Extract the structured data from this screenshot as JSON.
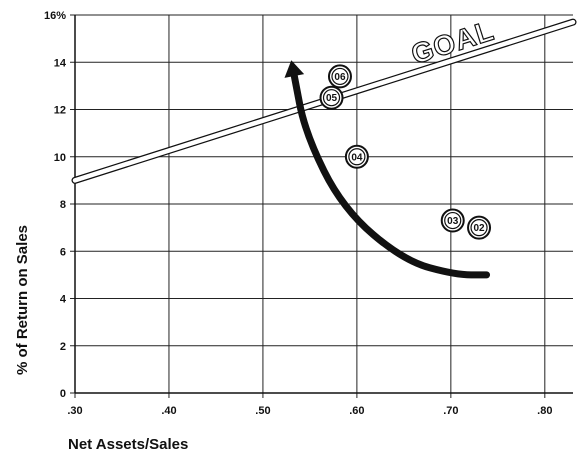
{
  "chart_data": {
    "type": "scatter",
    "xlabel": "Net Assets/Sales",
    "ylabel": "% of Return on Sales",
    "xlim": [
      0.3,
      0.83
    ],
    "ylim": [
      0,
      16
    ],
    "x_ticks": [
      0.3,
      0.4,
      0.5,
      0.6,
      0.7,
      0.8
    ],
    "x_tick_labels": [
      ".30",
      ".40",
      ".50",
      ".60",
      ".70",
      ".80"
    ],
    "y_ticks": [
      0,
      2,
      4,
      6,
      8,
      10,
      12,
      14,
      16
    ],
    "y_tick_labels": [
      "0",
      "2",
      "4",
      "6",
      "8",
      "10",
      "12",
      "14",
      "16%"
    ],
    "grid": true,
    "goal_line": {
      "label": "GOAL",
      "start": [
        0.3,
        9.0
      ],
      "end": [
        0.83,
        15.7
      ]
    },
    "points": [
      {
        "label": "02",
        "x": 0.73,
        "y": 7.0
      },
      {
        "label": "03",
        "x": 0.702,
        "y": 7.3
      },
      {
        "label": "04",
        "x": 0.6,
        "y": 10.0
      },
      {
        "label": "05",
        "x": 0.573,
        "y": 12.5
      },
      {
        "label": "06",
        "x": 0.582,
        "y": 13.4
      }
    ],
    "trend_arrow": {
      "path": [
        [
          0.738,
          5.0
        ],
        [
          0.705,
          5.0
        ],
        [
          0.65,
          5.6
        ],
        [
          0.585,
          7.8
        ],
        [
          0.545,
          11.0
        ],
        [
          0.533,
          13.5
        ]
      ],
      "color": "#111111"
    }
  }
}
